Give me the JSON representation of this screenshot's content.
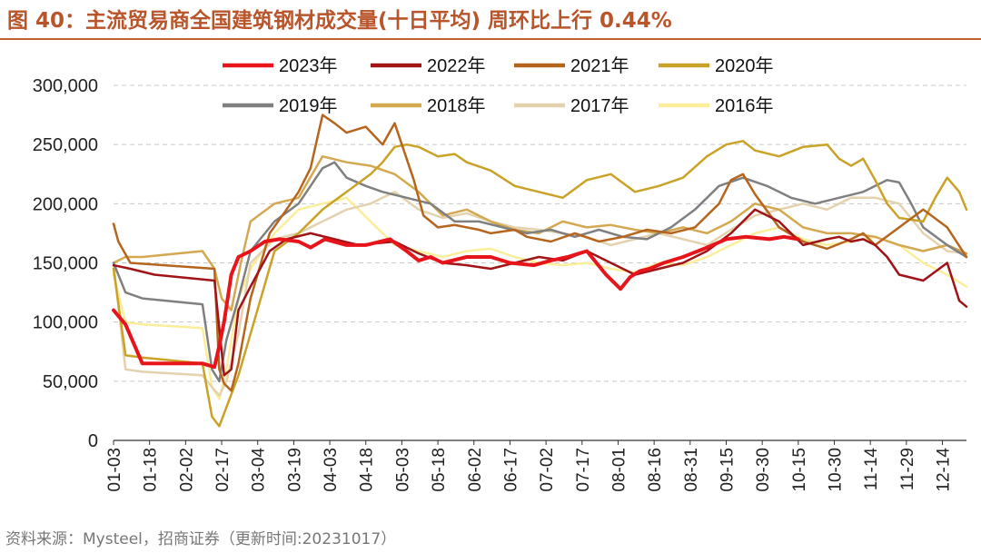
{
  "title": "图 40：主流贸易商全国建筑钢材成交量(十日平均) 周环比上行 0.44%",
  "source": "资料来源：Mysteel，招商证券（更新时间:20231017）",
  "chart_data": {
    "type": "line",
    "title": "主流贸易商全国建筑钢材成交量(十日平均)",
    "xlabel": "",
    "ylabel": "",
    "ylim": [
      0,
      300000
    ],
    "yticks": [
      0,
      50000,
      100000,
      150000,
      200000,
      250000,
      300000
    ],
    "ytick_labels": [
      "0",
      "50,000",
      "100,000",
      "150,000",
      "200,000",
      "250,000",
      "300,000"
    ],
    "x_ticks": [
      "01-03",
      "01-18",
      "02-02",
      "02-17",
      "03-04",
      "03-19",
      "04-03",
      "04-18",
      "05-03",
      "05-18",
      "06-02",
      "06-17",
      "07-02",
      "07-17",
      "08-01",
      "08-16",
      "08-31",
      "09-15",
      "09-30",
      "10-15",
      "10-30",
      "11-14",
      "11-29",
      "12-14"
    ],
    "x_start_day": 3,
    "x_end_day": 358,
    "legend_position": "top",
    "grid": "horizontal dashed",
    "series": [
      {
        "name": "2023年",
        "color": "#e8141c",
        "width": 4,
        "x": [
          3,
          8,
          15,
          40,
          45,
          47,
          49,
          52,
          55,
          60,
          66,
          72,
          80,
          85,
          91,
          100,
          108,
          118,
          125,
          130,
          135,
          140,
          150,
          160,
          168,
          178,
          185,
          192,
          200,
          208,
          214,
          218,
          222,
          226,
          232,
          240,
          250,
          258,
          266,
          276,
          282,
          288
        ],
        "y": [
          110000,
          98000,
          65000,
          65000,
          62000,
          80000,
          100000,
          140000,
          155000,
          160000,
          168000,
          170000,
          168000,
          163000,
          170000,
          165000,
          165000,
          170000,
          160000,
          152000,
          155000,
          150000,
          155000,
          155000,
          150000,
          148000,
          152000,
          155000,
          160000,
          140000,
          128000,
          138000,
          143000,
          145000,
          150000,
          155000,
          163000,
          170000,
          172000,
          170000,
          172000,
          170000
        ]
      },
      {
        "name": "2022年",
        "color": "#a01418",
        "width": 2.5,
        "x": [
          3,
          10,
          20,
          45,
          47,
          49,
          52,
          55,
          60,
          68,
          75,
          85,
          95,
          105,
          120,
          130,
          140,
          150,
          160,
          170,
          180,
          190,
          200,
          210,
          220,
          230,
          240,
          250,
          260,
          270,
          280,
          290,
          300,
          305,
          310,
          315,
          320,
          325,
          330,
          340,
          350,
          355,
          358
        ],
        "y": [
          148000,
          145000,
          140000,
          135000,
          95000,
          55000,
          60000,
          110000,
          130000,
          160000,
          170000,
          175000,
          170000,
          165000,
          168000,
          158000,
          150000,
          148000,
          145000,
          150000,
          155000,
          152000,
          160000,
          150000,
          140000,
          145000,
          150000,
          160000,
          175000,
          195000,
          185000,
          165000,
          170000,
          172000,
          168000,
          170000,
          165000,
          155000,
          140000,
          135000,
          150000,
          118000,
          113000
        ]
      },
      {
        "name": "2021年",
        "color": "#b5651d",
        "width": 2.5,
        "x": [
          3,
          5,
          10,
          45,
          47,
          49,
          52,
          55,
          60,
          68,
          75,
          80,
          85,
          90,
          95,
          100,
          108,
          115,
          120,
          128,
          132,
          138,
          145,
          155,
          160,
          170,
          175,
          185,
          195,
          205,
          215,
          225,
          235,
          245,
          255,
          260,
          265,
          270,
          280,
          290,
          300,
          310,
          315,
          320,
          330,
          340,
          350,
          358
        ],
        "y": [
          183000,
          168000,
          150000,
          145000,
          60000,
          48000,
          42000,
          65000,
          120000,
          175000,
          195000,
          210000,
          230000,
          275000,
          268000,
          260000,
          265000,
          250000,
          268000,
          220000,
          190000,
          180000,
          182000,
          178000,
          175000,
          178000,
          172000,
          168000,
          175000,
          168000,
          172000,
          178000,
          175000,
          180000,
          200000,
          220000,
          225000,
          208000,
          180000,
          168000,
          162000,
          170000,
          175000,
          165000,
          180000,
          195000,
          180000,
          155000
        ]
      },
      {
        "name": "2020年",
        "color": "#c9a227",
        "width": 2.5,
        "x": [
          3,
          8,
          15,
          40,
          44,
          47,
          50,
          55,
          60,
          70,
          80,
          90,
          100,
          110,
          115,
          120,
          125,
          130,
          138,
          145,
          150,
          160,
          170,
          180,
          190,
          200,
          210,
          220,
          230,
          240,
          250,
          258,
          265,
          270,
          280,
          290,
          300,
          305,
          310,
          315,
          320,
          325,
          330,
          340,
          345,
          350,
          355,
          358
        ],
        "y": [
          145000,
          72000,
          70000,
          65000,
          20000,
          12000,
          28000,
          55000,
          90000,
          160000,
          175000,
          195000,
          210000,
          225000,
          235000,
          248000,
          250000,
          248000,
          240000,
          242000,
          235000,
          228000,
          215000,
          210000,
          205000,
          220000,
          225000,
          210000,
          215000,
          222000,
          240000,
          250000,
          253000,
          245000,
          240000,
          248000,
          250000,
          238000,
          232000,
          238000,
          220000,
          200000,
          188000,
          185000,
          205000,
          222000,
          210000,
          195000
        ]
      },
      {
        "name": "2019年",
        "color": "#808080",
        "width": 2.5,
        "x": [
          3,
          8,
          15,
          40,
          44,
          47,
          50,
          55,
          60,
          70,
          80,
          90,
          95,
          100,
          108,
          115,
          125,
          135,
          145,
          155,
          165,
          175,
          185,
          195,
          205,
          215,
          225,
          235,
          245,
          255,
          265,
          275,
          285,
          295,
          305,
          315,
          320,
          325,
          330,
          335,
          340,
          350,
          358
        ],
        "y": [
          150000,
          125000,
          120000,
          115000,
          60000,
          50000,
          85000,
          120000,
          160000,
          185000,
          200000,
          230000,
          235000,
          222000,
          215000,
          210000,
          205000,
          200000,
          185000,
          185000,
          180000,
          175000,
          178000,
          172000,
          178000,
          172000,
          170000,
          180000,
          195000,
          215000,
          222000,
          215000,
          205000,
          200000,
          205000,
          210000,
          215000,
          220000,
          218000,
          200000,
          180000,
          165000,
          155000
        ]
      },
      {
        "name": "2018年",
        "color": "#d4a850",
        "width": 2.5,
        "x": [
          3,
          8,
          15,
          40,
          45,
          48,
          52,
          56,
          60,
          70,
          80,
          90,
          100,
          110,
          120,
          130,
          140,
          150,
          160,
          170,
          180,
          190,
          200,
          210,
          220,
          230,
          240,
          250,
          260,
          270,
          280,
          290,
          300,
          310,
          320,
          330,
          340,
          350,
          358
        ],
        "y": [
          150000,
          155000,
          155000,
          160000,
          145000,
          120000,
          110000,
          150000,
          185000,
          200000,
          205000,
          240000,
          235000,
          232000,
          225000,
          210000,
          190000,
          195000,
          185000,
          178000,
          175000,
          185000,
          180000,
          182000,
          178000,
          175000,
          180000,
          175000,
          185000,
          200000,
          195000,
          180000,
          175000,
          175000,
          172000,
          165000,
          160000,
          165000,
          158000
        ]
      },
      {
        "name": "2017年",
        "color": "#e3d2ad",
        "width": 2.5,
        "x": [
          3,
          8,
          15,
          40,
          44,
          47,
          50,
          55,
          60,
          70,
          80,
          90,
          100,
          110,
          120,
          130,
          140,
          150,
          160,
          170,
          180,
          190,
          200,
          210,
          220,
          230,
          240,
          250,
          260,
          270,
          280,
          290,
          300,
          310,
          320,
          330,
          340,
          350,
          358
        ],
        "y": [
          150000,
          60000,
          58000,
          55000,
          45000,
          38000,
          50000,
          90000,
          150000,
          170000,
          175000,
          185000,
          195000,
          200000,
          210000,
          195000,
          188000,
          192000,
          185000,
          180000,
          178000,
          175000,
          172000,
          165000,
          170000,
          175000,
          170000,
          165000,
          178000,
          190000,
          195000,
          200000,
          195000,
          205000,
          205000,
          200000,
          175000,
          160000,
          158000
        ]
      },
      {
        "name": "2016年",
        "color": "#fbee9b",
        "width": 2.5,
        "x": [
          3,
          8,
          15,
          40,
          44,
          47,
          50,
          55,
          60,
          70,
          80,
          90,
          100,
          110,
          120,
          130,
          140,
          150,
          160,
          170,
          180,
          190,
          200,
          210,
          220,
          230,
          240,
          250,
          260,
          270,
          280,
          290,
          300,
          310,
          320,
          330,
          340,
          350,
          358
        ],
        "y": [
          140000,
          100000,
          98000,
          95000,
          45000,
          35000,
          60000,
          120000,
          145000,
          175000,
          195000,
          200000,
          205000,
          185000,
          165000,
          160000,
          155000,
          160000,
          162000,
          155000,
          150000,
          148000,
          150000,
          145000,
          142000,
          150000,
          148000,
          155000,
          165000,
          175000,
          180000,
          170000,
          165000,
          168000,
          172000,
          165000,
          150000,
          140000,
          130000
        ]
      }
    ]
  }
}
